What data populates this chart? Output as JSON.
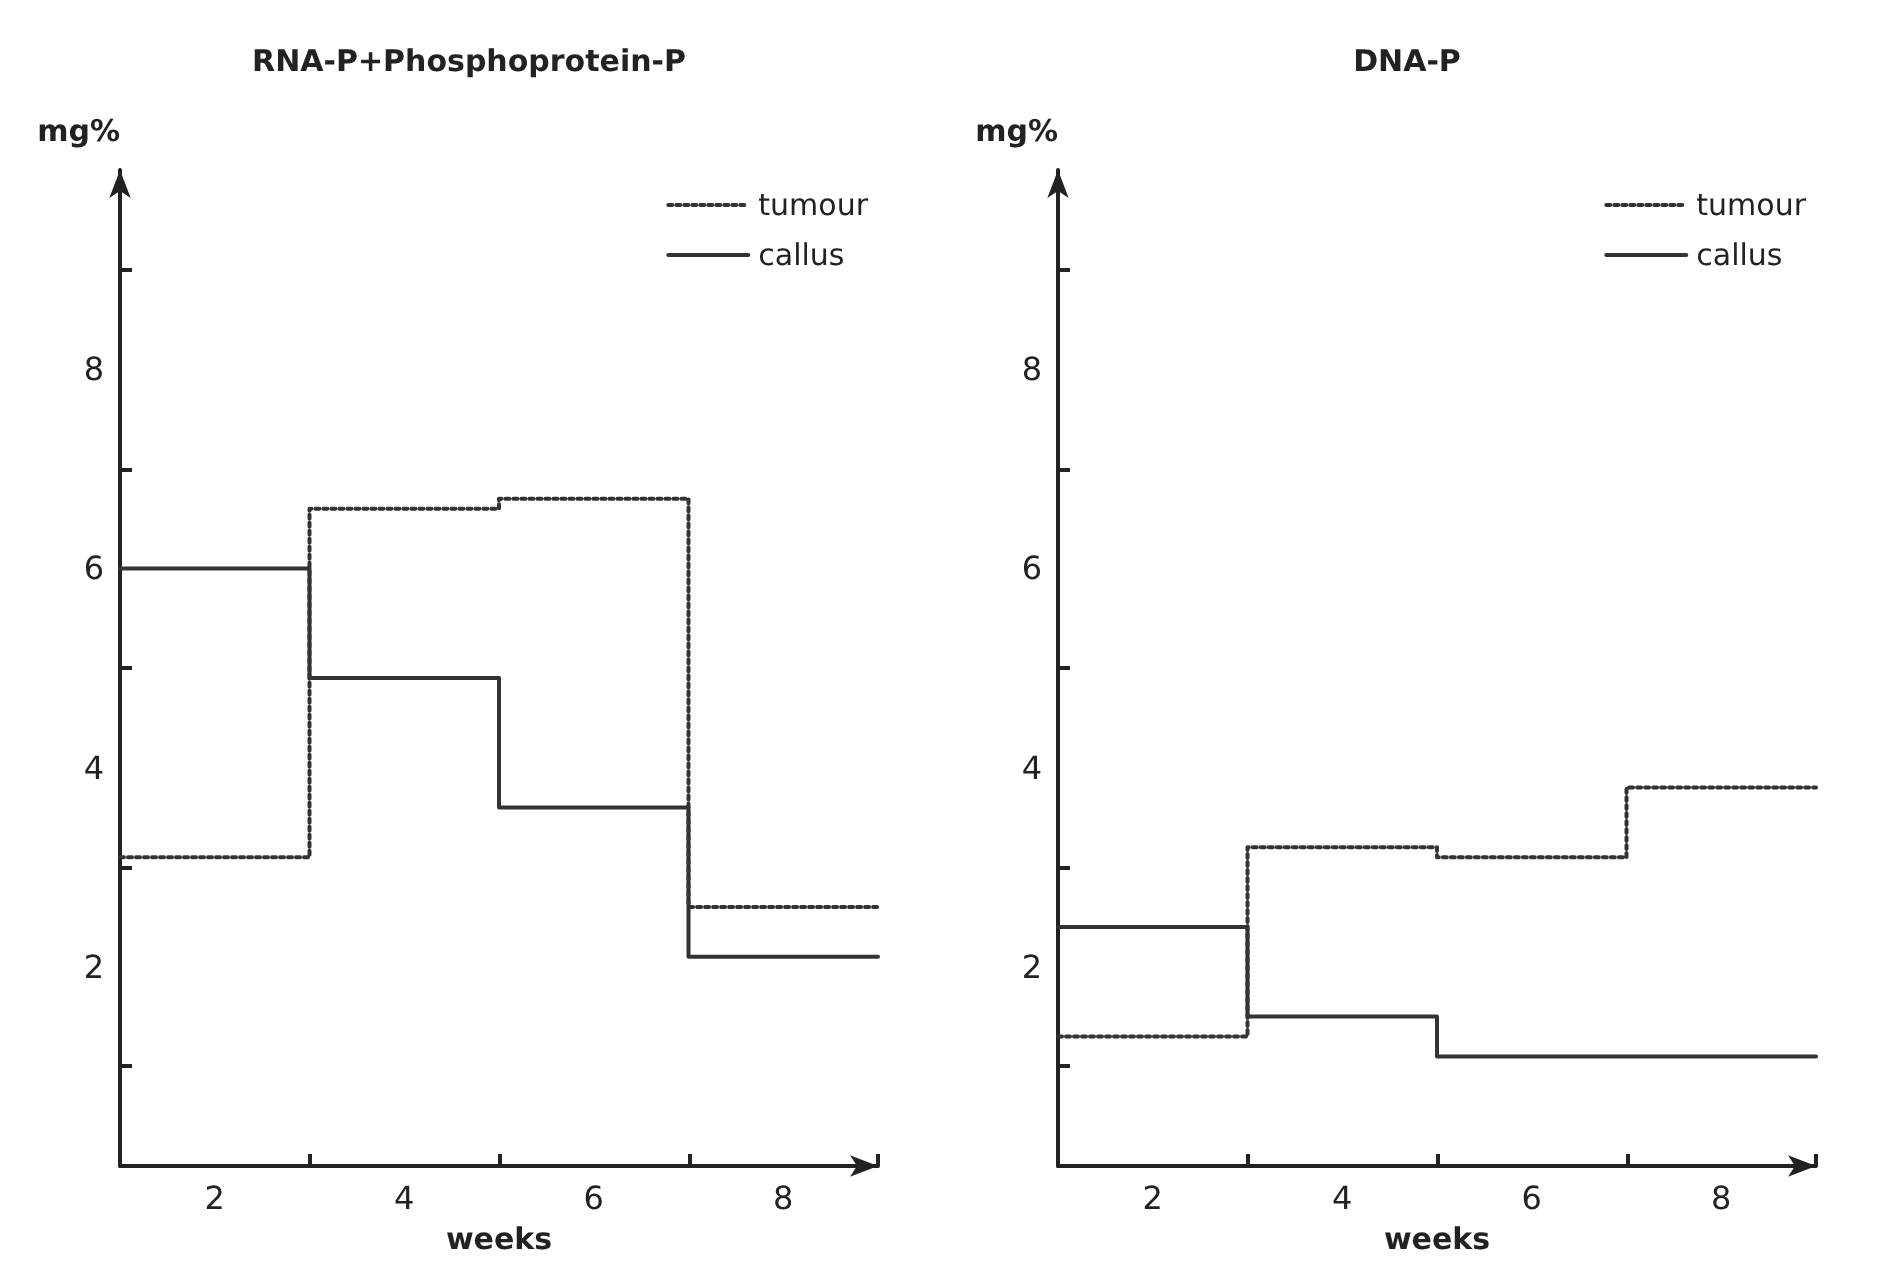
{
  "chart_data": [
    {
      "type": "step",
      "title": "RNA-P+Phosphoprotein-P",
      "xlabel": "weeks",
      "ylabel": "mg%",
      "xlim": [
        1,
        9
      ],
      "ylim": [
        0,
        10
      ],
      "xticks": [
        2,
        {
          "value": 3,
          "label": null
        },
        4,
        {
          "value": 5,
          "label": null
        },
        6,
        {
          "value": 7,
          "label": null
        },
        8,
        {
          "value": 9,
          "label": null
        }
      ],
      "yticks": [
        {
          "value": 1,
          "label": null
        },
        2,
        {
          "value": 3,
          "label": null
        },
        4,
        {
          "value": 5,
          "label": null
        },
        6,
        {
          "value": 7,
          "label": null
        },
        8,
        {
          "value": 9,
          "label": null
        }
      ],
      "legend": "top right",
      "grid": false,
      "marker": "none",
      "series": [
        {
          "name": "tumour",
          "color": "#333333",
          "line_style": "dotted",
          "x": [
            1,
            3,
            5,
            7,
            9
          ],
          "values": [
            3.1,
            6.6,
            6.7,
            2.6,
            2.6
          ]
        },
        {
          "name": "callus",
          "color": "#333333",
          "line_style": "solid",
          "x": [
            1,
            3,
            5,
            7,
            9
          ],
          "values": [
            6.0,
            4.9,
            3.6,
            2.1,
            2.1
          ]
        }
      ]
    },
    {
      "type": "step",
      "title": "DNA-P",
      "xlabel": "weeks",
      "ylabel": "mg%",
      "xlim": [
        1,
        9
      ],
      "ylim": [
        0,
        10
      ],
      "xticks": [
        2,
        {
          "value": 3,
          "label": null
        },
        4,
        {
          "value": 5,
          "label": null
        },
        6,
        {
          "value": 7,
          "label": null
        },
        8,
        {
          "value": 9,
          "label": null
        }
      ],
      "yticks": [
        {
          "value": 1,
          "label": null
        },
        2,
        {
          "value": 3,
          "label": null
        },
        4,
        {
          "value": 5,
          "label": null
        },
        6,
        {
          "value": 7,
          "label": null
        },
        8,
        {
          "value": 9,
          "label": null
        }
      ],
      "legend": "top right",
      "grid": false,
      "marker": "none",
      "series": [
        {
          "name": "tumour",
          "color": "#333333",
          "line_style": "dotted",
          "x": [
            1,
            3,
            5,
            7,
            9
          ],
          "values": [
            1.3,
            3.2,
            3.1,
            3.8,
            3.8
          ]
        },
        {
          "name": "callus",
          "color": "#333333",
          "line_style": "solid",
          "x": [
            1,
            3,
            5,
            9
          ],
          "values": [
            2.4,
            1.5,
            1.1,
            1.1
          ]
        }
      ]
    }
  ]
}
